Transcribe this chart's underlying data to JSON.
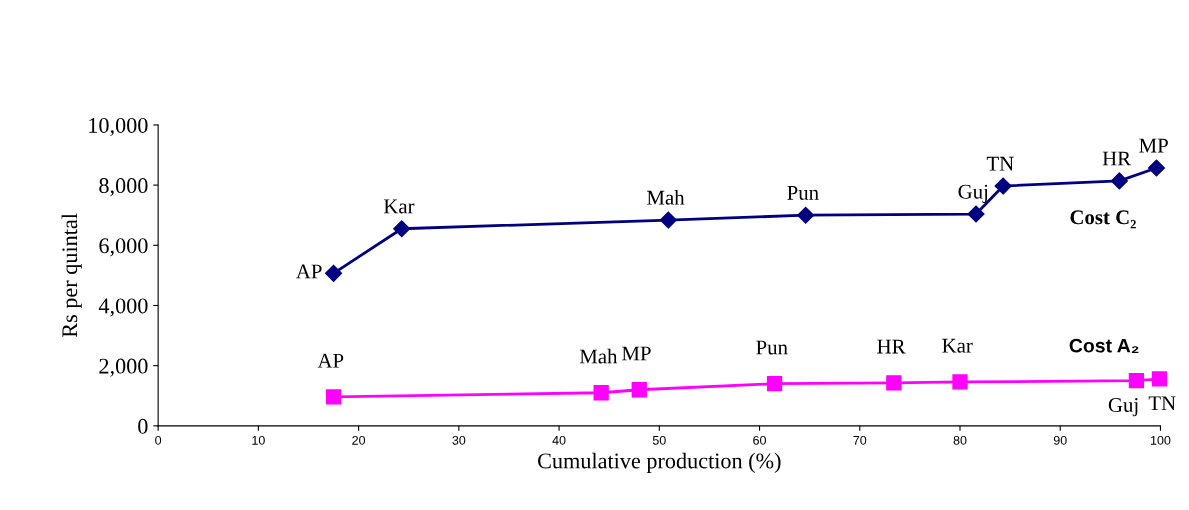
{
  "chart_data": {
    "type": "line",
    "xlabel": "Cumulative production (%)",
    "ylabel": "Rs per quintal",
    "xlim": [
      0,
      100
    ],
    "xticks": [
      0,
      10,
      20,
      30,
      40,
      50,
      60,
      70,
      80,
      90,
      100
    ],
    "ylim": [
      0,
      10000
    ],
    "yticks": [
      {
        "value": 0,
        "label": "0"
      },
      {
        "value": 2000,
        "label": "2,000"
      },
      {
        "value": 4000,
        "label": "4,000"
      },
      {
        "value": 6000,
        "label": "6,000"
      },
      {
        "value": 8000,
        "label": "8,000"
      },
      {
        "value": 10000,
        "label": "10,000"
      }
    ],
    "grid": false,
    "legend": false,
    "series": [
      {
        "name": "Cost C₂",
        "color": "#000080",
        "marker": "diamond",
        "x": [
          17.5,
          24.3,
          50.9,
          64.6,
          81.6,
          84.3,
          95.9,
          99.6
        ],
        "values": [
          5070,
          6550,
          6840,
          7000,
          7040,
          7970,
          8140,
          8570
        ]
      },
      {
        "name": "Cost A₂",
        "color": "#ff00ff",
        "marker": "square",
        "x": [
          17.5,
          44.2,
          48.0,
          61.5,
          73.4,
          80.0,
          97.6,
          99.9
        ],
        "values": [
          960,
          1100,
          1200,
          1400,
          1430,
          1460,
          1500,
          1560
        ]
      }
    ],
    "annotations": [
      {
        "text": "AP",
        "x": 17.5,
        "y": 5070
      },
      {
        "text": "Kar",
        "x": 24.3,
        "y": 6550
      },
      {
        "text": "Mah",
        "x": 50.9,
        "y": 6840
      },
      {
        "text": "Pun",
        "x": 64.6,
        "y": 7000
      },
      {
        "text": "Guj",
        "x": 81.6,
        "y": 7040
      },
      {
        "text": "TN",
        "x": 84.3,
        "y": 7970
      },
      {
        "text": "HR",
        "x": 95.9,
        "y": 8140
      },
      {
        "text": "MP",
        "x": 99.6,
        "y": 8570
      },
      {
        "text": "AP",
        "x": 17.5,
        "y": 960
      },
      {
        "text": "Mah",
        "x": 44.2,
        "y": 1100
      },
      {
        "text": "MP",
        "x": 48.0,
        "y": 1200
      },
      {
        "text": "Pun",
        "x": 61.5,
        "y": 1400
      },
      {
        "text": "HR",
        "x": 73.4,
        "y": 1430
      },
      {
        "text": "Kar",
        "x": 80.0,
        "y": 1460
      },
      {
        "text": "Guj",
        "x": 97.6,
        "y": 1500
      },
      {
        "text": "TN",
        "x": 99.9,
        "y": 1560
      }
    ]
  }
}
